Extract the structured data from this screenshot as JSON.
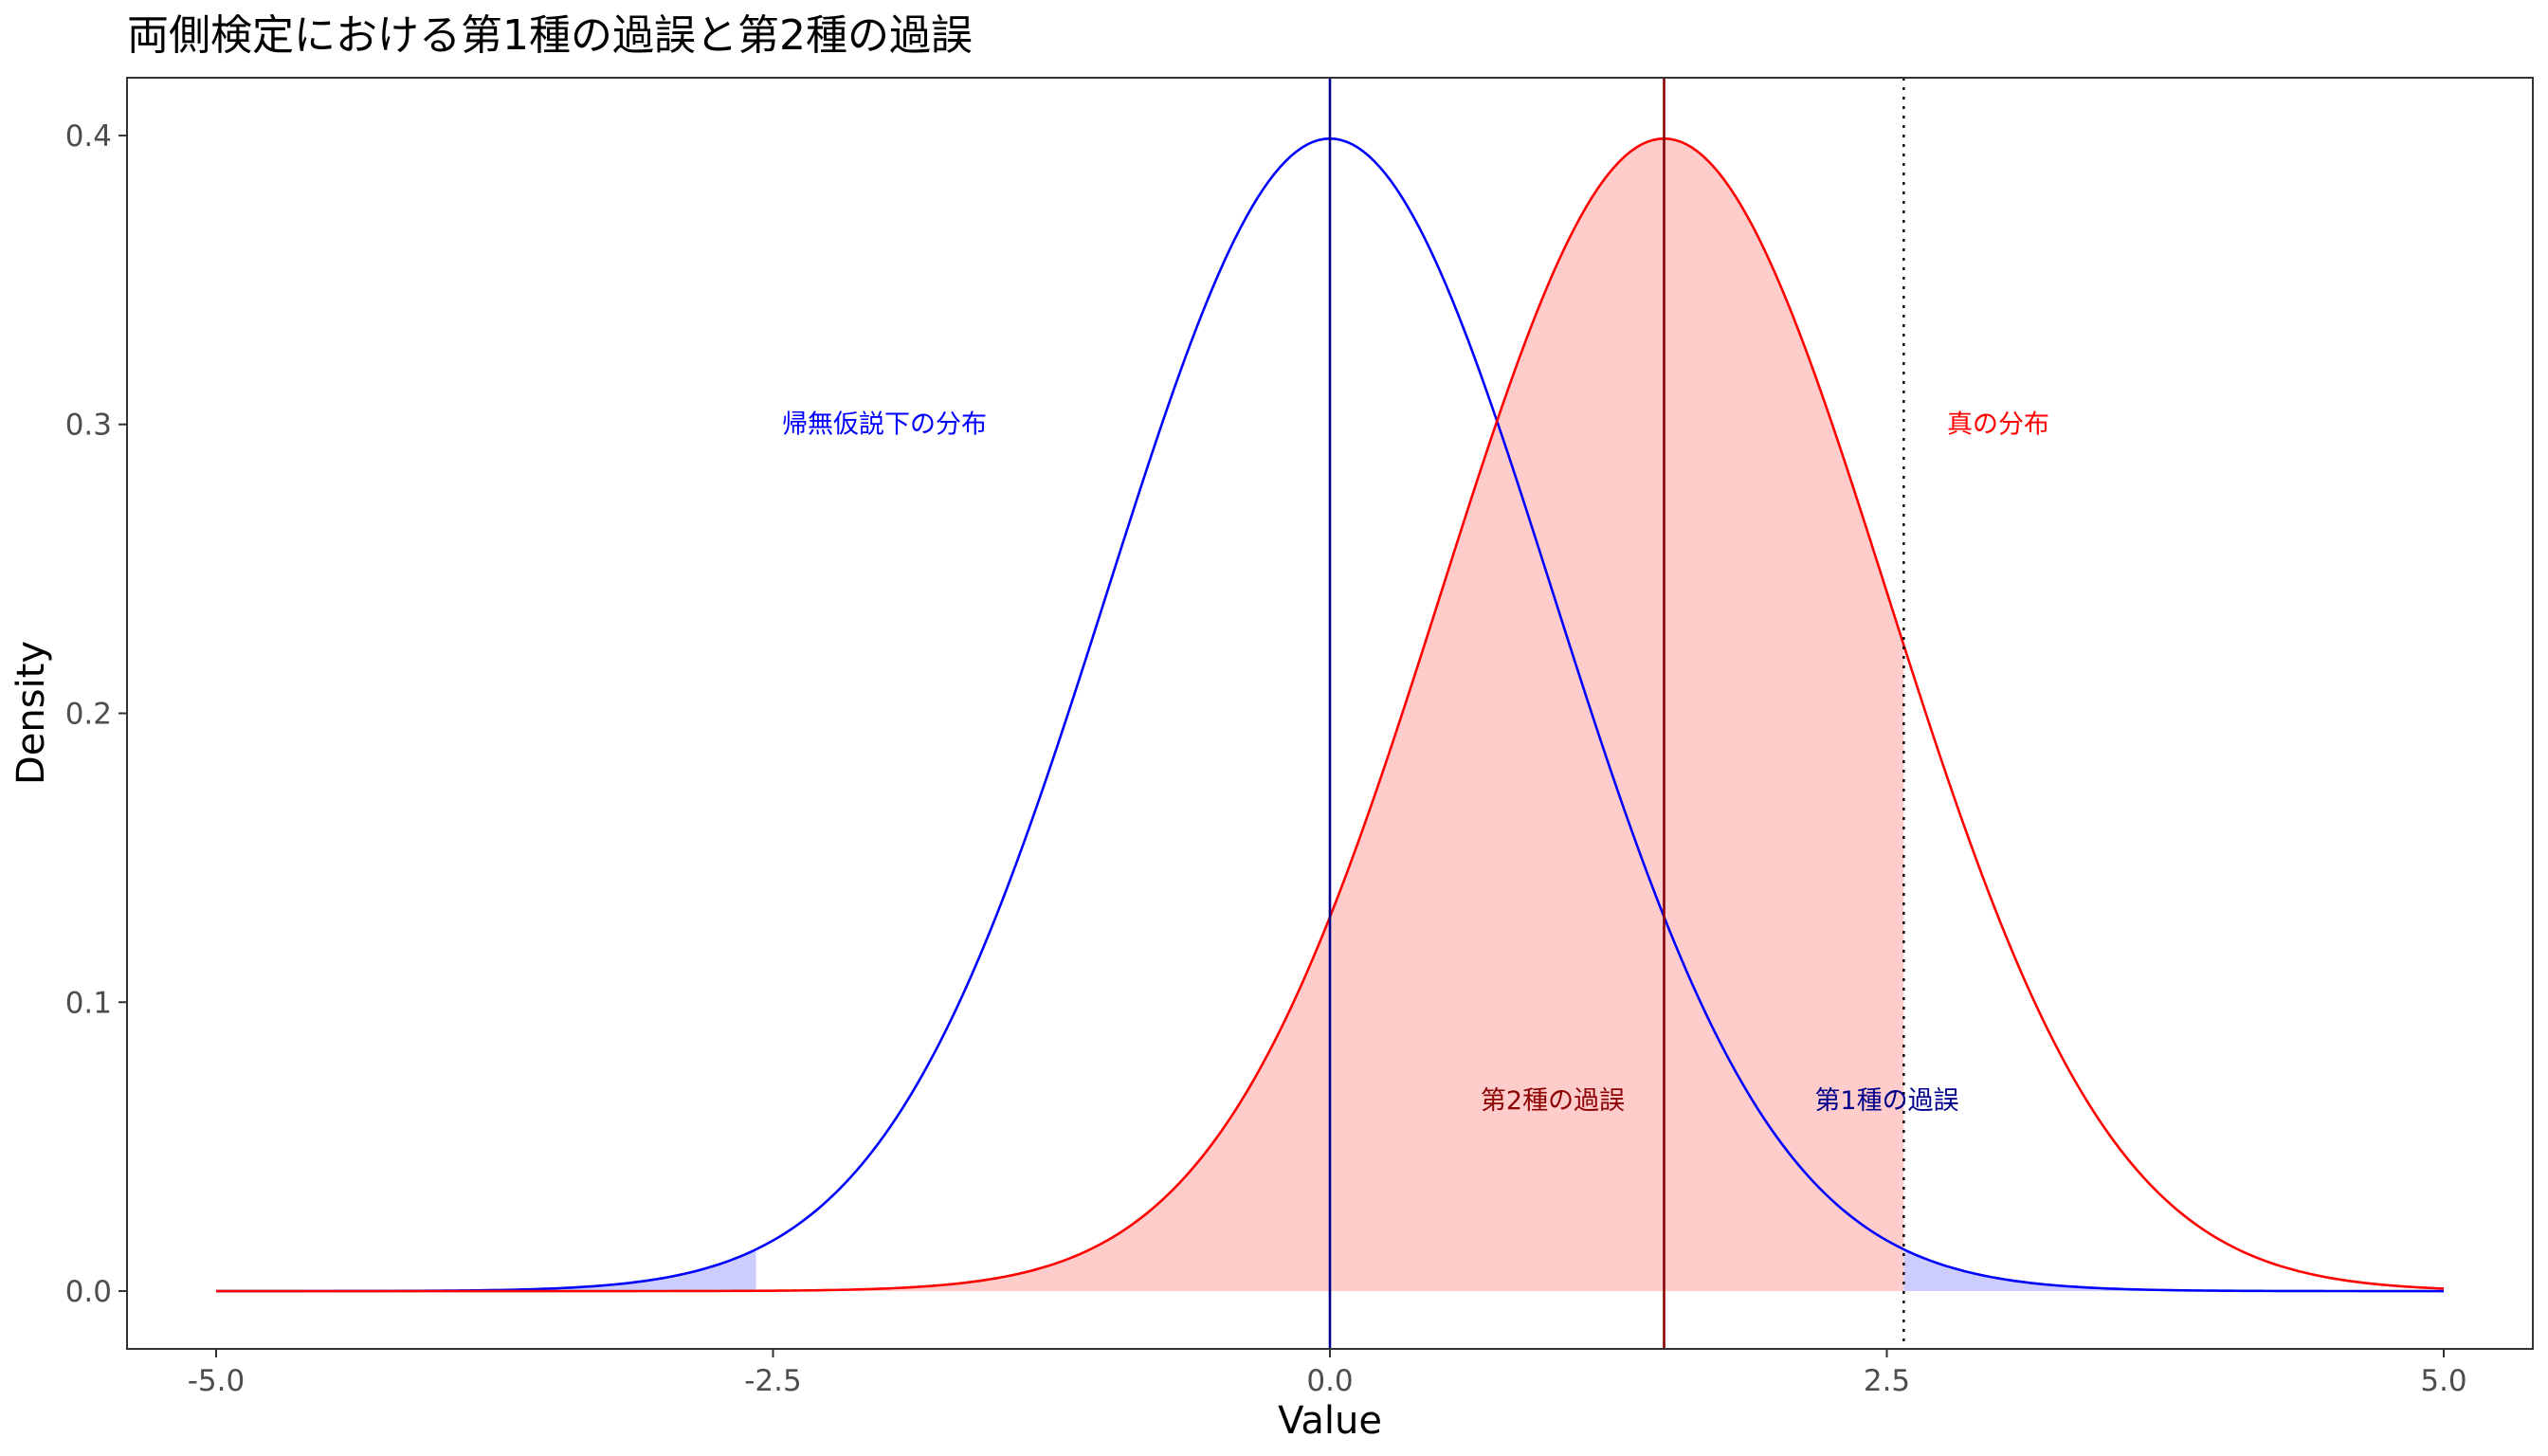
{
  "chart_data": {
    "type": "area",
    "title": "両側検定における第1種の過誤と第2種の過誤",
    "xlabel": "Value",
    "ylabel": "Density",
    "xlim": [
      -5.4,
      5.4
    ],
    "ylim": [
      -0.02,
      0.42
    ],
    "x_ticks": [
      -5.0,
      -2.5,
      0.0,
      2.5,
      5.0
    ],
    "x_tick_labels": [
      "-5.0",
      "-2.5",
      "0.0",
      "2.5",
      "5.0"
    ],
    "y_ticks": [
      0.0,
      0.1,
      0.2,
      0.3,
      0.4
    ],
    "y_tick_labels": [
      "0.0",
      "0.1",
      "0.2",
      "0.3",
      "0.4"
    ],
    "grid": false,
    "x_range": [
      -5,
      5
    ],
    "series": [
      {
        "distribution": "normal",
        "mean": 0.0,
        "sd": 1,
        "color": "#0000ff"
      },
      {
        "distribution": "normal",
        "mean": 1.5,
        "sd": 1,
        "color": "#ff0000"
      }
    ],
    "critical_values": [
      -2.576,
      2.576
    ],
    "vertical_lines": [
      {
        "x": 0.0,
        "color": "#00008b",
        "style": "solid"
      },
      {
        "x": 1.5,
        "color": "#8b0000",
        "style": "solid"
      },
      {
        "x": 2.576,
        "color": "#000000",
        "style": "dotted"
      }
    ],
    "shaded_regions": [
      {
        "series": 0,
        "from": -5.0,
        "to": -2.576,
        "color": "#ccccff"
      },
      {
        "series": 0,
        "from": 2.576,
        "to": 5.0,
        "color": "#ccccff"
      },
      {
        "series": 1,
        "from": -2.576,
        "to": 2.576,
        "color": "#ffcccc"
      }
    ],
    "annotations": [
      {
        "text": "帰無仮説下の分布",
        "x": -2.0,
        "y": 0.3,
        "color": "#0000ff"
      },
      {
        "text": "真の分布",
        "x": 3.0,
        "y": 0.3,
        "color": "#ff0000"
      },
      {
        "text": "第2種の過誤",
        "x": 1.0,
        "y": 0.066,
        "color": "#8b0000"
      },
      {
        "text": "第1種の過誤",
        "x": 2.5,
        "y": 0.066,
        "color": "#00008b"
      }
    ]
  }
}
